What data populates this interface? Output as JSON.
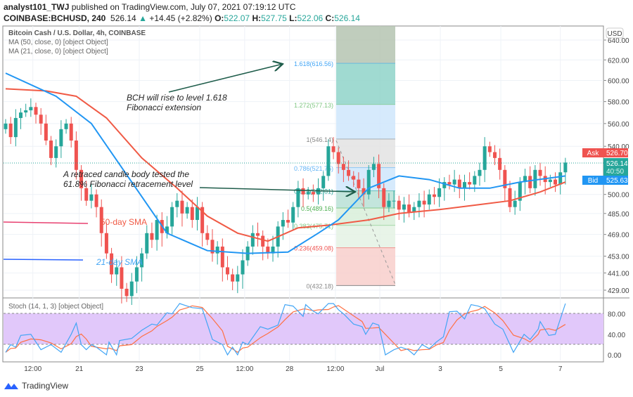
{
  "header": {
    "author": "analyst101_TWJ",
    "published": "published on TradingView.com, July 07, 2021 07:19:12 UTC",
    "symbol": "COINBASE:BCHUSD, 240",
    "last": "526.14",
    "change": "+14.45 (+2.82%)",
    "o_label": "O:",
    "o": "522.07",
    "h_label": "H:",
    "h": "527.75",
    "l_label": "L:",
    "l": "522.06",
    "c_label": "C:",
    "c": "526.14"
  },
  "legend": {
    "title": "Bitcoin Cash / U.S. Dollar, 4h, COINBASE",
    "ma50": "MA (50, close, 0) [object Object]",
    "ma21": "MA (21, close, 0) [object Object]",
    "stoch": "Stoch (14, 1, 3) [object Object]"
  },
  "price_axis": {
    "currency": "USD",
    "ask_label": "Ask",
    "ask": "526.70",
    "last": "526.14",
    "countdown": "40:50",
    "bid_label": "Bid",
    "bid": "525.63"
  },
  "annotations": {
    "bch_rise": [
      "BCH will rise to level 1.618",
      "Fibonacci extension"
    ],
    "retrace": [
      "A retraced candle body tested the",
      "61.8% Fibonacci retracement level"
    ],
    "sma50": "50-day SMA",
    "sma21": "21-day SMA"
  },
  "footer": {
    "brand": "TradingView"
  },
  "colors": {
    "up": "#26a69a",
    "down": "#ef5350",
    "ma21": "#2196f3",
    "ma50": "#f05a45",
    "stoch_k": "#42a5f5",
    "stoch_d": "#ff7043"
  },
  "chart_data": {
    "type": "candlestick",
    "scale": "log",
    "title": "Bitcoin Cash / U.S. Dollar, 4h, COINBASE",
    "y_ticks": [
      "640.00",
      "620.00",
      "600.00",
      "580.00",
      "560.00",
      "540.00",
      "500.00",
      "485.00",
      "469.00",
      "453.00",
      "441.00",
      "429.00"
    ],
    "ylim": [
      429,
      640
    ],
    "x_ticks": [
      {
        "label": "12:00",
        "idx": 5.4
      },
      {
        "label": "21",
        "idx": 14.6
      },
      {
        "label": "23",
        "idx": 26.5
      },
      {
        "label": "25",
        "idx": 38.5
      },
      {
        "label": "12:00",
        "idx": 47.4
      },
      {
        "label": "28",
        "idx": 56.3
      },
      {
        "label": "12:00",
        "idx": 65.4
      },
      {
        "label": "Jul",
        "idx": 74.2
      },
      {
        "label": "3",
        "idx": 86.2
      },
      {
        "label": "5",
        "idx": 98.2
      },
      {
        "label": "7",
        "idx": 110.0
      }
    ],
    "closes": [
      560,
      548,
      565,
      570,
      572,
      575,
      568,
      560,
      545,
      530,
      540,
      555,
      560,
      545,
      520,
      505,
      495,
      500,
      490,
      470,
      455,
      440,
      445,
      430,
      425,
      435,
      445,
      455,
      470,
      465,
      480,
      470,
      475,
      490,
      495,
      485,
      490,
      480,
      490,
      470,
      465,
      455,
      460,
      445,
      440,
      435,
      440,
      450,
      460,
      470,
      468,
      460,
      455,
      460,
      475,
      480,
      478,
      490,
      505,
      500,
      502,
      500,
      505,
      515,
      540,
      535,
      525,
      520,
      515,
      512,
      505,
      500,
      520,
      525,
      505,
      490,
      495,
      495,
      488,
      492,
      486,
      490,
      495,
      492,
      500,
      498,
      505,
      510,
      508,
      512,
      505,
      510,
      508,
      515,
      520,
      540,
      535,
      530,
      520,
      505,
      490,
      495,
      510,
      515,
      505,
      520,
      515,
      510,
      512,
      508,
      518,
      526.14
    ],
    "ma21": [
      [
        0,
        607
      ],
      [
        10,
        585
      ],
      [
        17,
        560
      ],
      [
        25,
        510
      ],
      [
        32,
        470
      ],
      [
        40,
        457
      ],
      [
        48,
        455
      ],
      [
        56,
        456
      ],
      [
        62,
        470
      ],
      [
        66,
        480
      ],
      [
        72,
        505
      ],
      [
        78,
        515
      ],
      [
        84,
        512
      ],
      [
        90,
        505
      ],
      [
        96,
        505
      ],
      [
        102,
        510
      ],
      [
        111,
        515
      ]
    ],
    "ma50": [
      [
        0,
        592
      ],
      [
        8,
        590
      ],
      [
        14,
        585
      ],
      [
        20,
        565
      ],
      [
        27,
        530
      ],
      [
        34,
        505
      ],
      [
        40,
        483
      ],
      [
        46,
        470
      ],
      [
        52,
        464
      ],
      [
        58,
        474
      ],
      [
        64,
        476
      ],
      [
        72,
        480
      ],
      [
        78,
        485
      ],
      [
        86,
        488
      ],
      [
        94,
        492
      ],
      [
        100,
        495
      ],
      [
        106,
        502
      ],
      [
        111,
        510
      ]
    ],
    "fibonacci": [
      {
        "level": "1.618",
        "price": 616.56
      },
      {
        "level": "1.272",
        "price": 577.13
      },
      {
        "level": "1",
        "price": 546.14
      },
      {
        "level": "0.786",
        "price": 521.75
      },
      {
        "level": "0.618",
        "price": 502.81
      },
      {
        "level": "0.5",
        "price": 489.16
      },
      {
        "level": "0.382",
        "price": 475.71
      },
      {
        "level": "0.236",
        "price": 459.08
      },
      {
        "level": "0",
        "price": 432.18
      }
    ],
    "stoch": {
      "ylim": [
        0,
        100
      ],
      "ticks": [
        "80.00",
        "40.00",
        "0.00"
      ],
      "bands": [
        20,
        80
      ],
      "k": [
        [
          0,
          5
        ],
        [
          1,
          20
        ],
        [
          2,
          15
        ],
        [
          3,
          38
        ],
        [
          5,
          40
        ],
        [
          7,
          10
        ],
        [
          9,
          20
        ],
        [
          11,
          5
        ],
        [
          13,
          40
        ],
        [
          14,
          62
        ],
        [
          15,
          20
        ],
        [
          16,
          10
        ],
        [
          17,
          20
        ],
        [
          18,
          15
        ],
        [
          20,
          0
        ],
        [
          20.5,
          25
        ],
        [
          22,
          0
        ],
        [
          22.6,
          28
        ],
        [
          25,
          32
        ],
        [
          27,
          48
        ],
        [
          29,
          60
        ],
        [
          30,
          58
        ],
        [
          32,
          82
        ],
        [
          33,
          80
        ],
        [
          34.5,
          100
        ],
        [
          36,
          95
        ],
        [
          37,
          92
        ],
        [
          39,
          90
        ],
        [
          41,
          30
        ],
        [
          43,
          20
        ],
        [
          44,
          0
        ],
        [
          45,
          15
        ],
        [
          46,
          0
        ],
        [
          47,
          25
        ],
        [
          48,
          20
        ],
        [
          50.5,
          55
        ],
        [
          52,
          50
        ],
        [
          54,
          58
        ],
        [
          55.4,
          98
        ],
        [
          57,
          95
        ],
        [
          59,
          75
        ],
        [
          59.5,
          98
        ],
        [
          61,
          85
        ],
        [
          62,
          80
        ],
        [
          64,
          100
        ],
        [
          65,
          100
        ],
        [
          66,
          88
        ],
        [
          67,
          80
        ],
        [
          69,
          60
        ],
        [
          70.7,
          55
        ],
        [
          71.4,
          40
        ],
        [
          72.8,
          62
        ],
        [
          74,
          58
        ],
        [
          75.3,
          0
        ],
        [
          77,
          10
        ],
        [
          78.4,
          15
        ],
        [
          79.8,
          10
        ],
        [
          81,
          0
        ],
        [
          82.6,
          20
        ],
        [
          84,
          12
        ],
        [
          85.4,
          25
        ],
        [
          86.8,
          35
        ],
        [
          88,
          84
        ],
        [
          89.5,
          85
        ],
        [
          91,
          70
        ],
        [
          92.3,
          98
        ],
        [
          93.7,
          95
        ],
        [
          95,
          90
        ],
        [
          97,
          60
        ],
        [
          98.6,
          50
        ],
        [
          100.7,
          5
        ],
        [
          102.8,
          40
        ],
        [
          104,
          30
        ],
        [
          105.6,
          50
        ],
        [
          106,
          65
        ],
        [
          107.7,
          38
        ],
        [
          109,
          40
        ],
        [
          111,
          100
        ]
      ]
    }
  }
}
